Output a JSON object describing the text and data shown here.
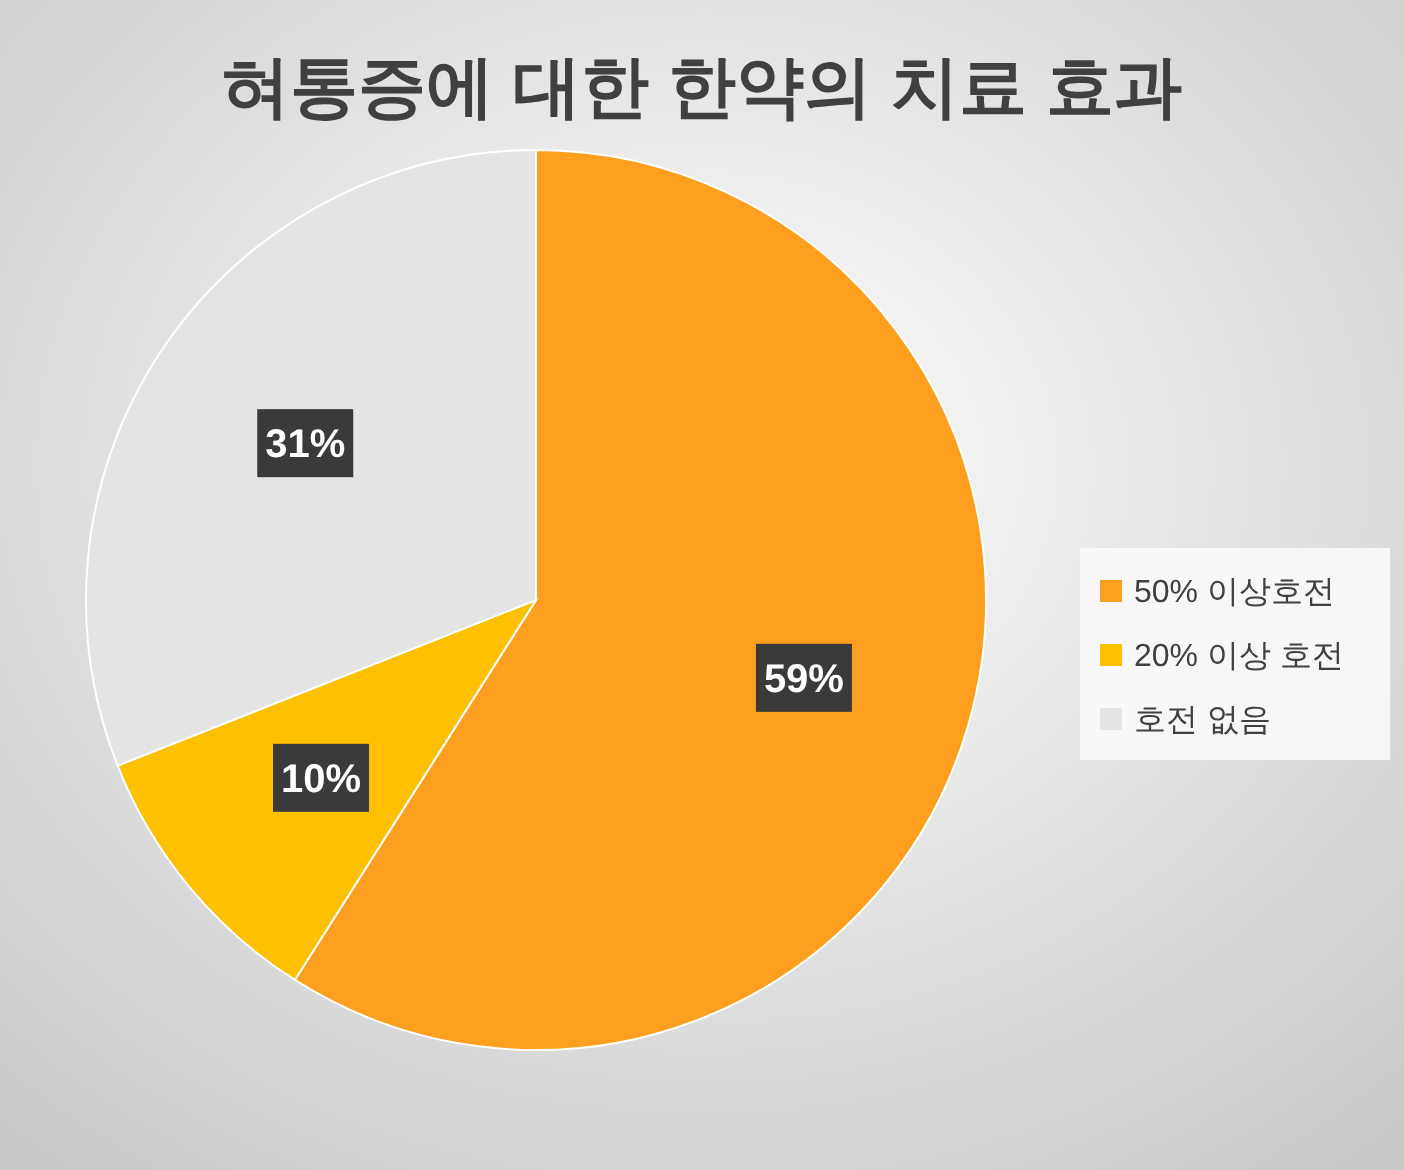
{
  "chart_data": {
    "type": "pie",
    "title": "혀통증에 대한 한약의 치료 효과",
    "categories": [
      "50% 이상호전",
      "20% 이상 호전",
      "호전 없음"
    ],
    "values": [
      59,
      10,
      31
    ],
    "colors": [
      "#ff9f1f",
      "#ffc000",
      "#e4e4e4"
    ],
    "value_labels": [
      "59%",
      "10%",
      "31%"
    ],
    "legend": "right"
  }
}
